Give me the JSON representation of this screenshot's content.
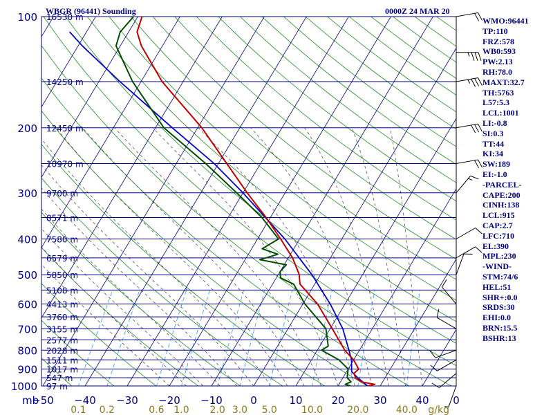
{
  "header": {
    "station": "WBGR (96441) Sounding",
    "time": "0000Z 24 MAR 20"
  },
  "chart_data": {
    "type": "skew-t",
    "pressure_ticks": [
      "100",
      "200",
      "300",
      "400",
      "500",
      "600",
      "700",
      "800",
      "900",
      "1000"
    ],
    "pressure_unit": "mb",
    "height_levels": [
      {
        "p": 100,
        "label": "16530 m"
      },
      {
        "p": 150,
        "label": "14250 m"
      },
      {
        "p": 200,
        "label": "12450 m"
      },
      {
        "p": 250,
        "label": "10970 m"
      },
      {
        "p": 300,
        "label": "9700 m"
      },
      {
        "p": 350,
        "label": "8571 m"
      },
      {
        "p": 400,
        "label": "7580 m"
      },
      {
        "p": 450,
        "label": "6579 m"
      },
      {
        "p": 500,
        "label": "5850 m"
      },
      {
        "p": 550,
        "label": "5108 m"
      },
      {
        "p": 600,
        "label": "4413 m"
      },
      {
        "p": 650,
        "label": "3760 m"
      },
      {
        "p": 700,
        "label": "3155 m"
      },
      {
        "p": 750,
        "label": "2577 m"
      },
      {
        "p": 800,
        "label": "2028 m"
      },
      {
        "p": 850,
        "label": "1511 m"
      },
      {
        "p": 900,
        "label": "1017 m"
      },
      {
        "p": 950,
        "label": "547 m"
      },
      {
        "p": 1000,
        "label": "97 m"
      }
    ],
    "temp_ticks": [
      "−50",
      "−40",
      "−30",
      "−20",
      "−10",
      "0",
      "10",
      "20",
      "30",
      "40",
      "0"
    ],
    "mixing_ticks": [
      "0.1",
      "0.2",
      "0.6",
      "1.0",
      "2.0",
      "3.0",
      "5.0",
      "10.0",
      "20.0",
      "40.0"
    ],
    "mixing_unit": "g/kg",
    "temperature": [
      {
        "p": 1000,
        "t": 27.0
      },
      {
        "p": 990,
        "t": 28.5
      },
      {
        "p": 975,
        "t": 25.0
      },
      {
        "p": 950,
        "t": 23.0
      },
      {
        "p": 925,
        "t": 22.0
      },
      {
        "p": 900,
        "t": 22.5
      },
      {
        "p": 850,
        "t": 20.0
      },
      {
        "p": 800,
        "t": 16.5
      },
      {
        "p": 700,
        "t": 10.5
      },
      {
        "p": 600,
        "t": 3.5
      },
      {
        "p": 530,
        "t": -3.5
      },
      {
        "p": 510,
        "t": -4.5
      },
      {
        "p": 500,
        "t": -5.0
      },
      {
        "p": 450,
        "t": -9.0
      },
      {
        "p": 400,
        "t": -14.5
      },
      {
        "p": 350,
        "t": -21.0
      },
      {
        "p": 300,
        "t": -29.0
      },
      {
        "p": 250,
        "t": -38.0
      },
      {
        "p": 200,
        "t": -49.0
      },
      {
        "p": 150,
        "t": -65.0
      },
      {
        "p": 120,
        "t": -75.0
      },
      {
        "p": 110,
        "t": -78.0
      },
      {
        "p": 100,
        "t": -79.0
      }
    ],
    "dewpoint": [
      {
        "p": 1000,
        "t": 23.0
      },
      {
        "p": 990,
        "t": 21.5
      },
      {
        "p": 975,
        "t": 22.5
      },
      {
        "p": 950,
        "t": 21.0
      },
      {
        "p": 925,
        "t": 20.5
      },
      {
        "p": 900,
        "t": 20.0
      },
      {
        "p": 850,
        "t": 16.5
      },
      {
        "p": 800,
        "t": 11.0
      },
      {
        "p": 780,
        "t": 12.0
      },
      {
        "p": 700,
        "t": 9.0
      },
      {
        "p": 600,
        "t": 0.5
      },
      {
        "p": 530,
        "t": -5.0
      },
      {
        "p": 510,
        "t": -9.0
      },
      {
        "p": 490,
        "t": -10.0
      },
      {
        "p": 470,
        "t": -9.5
      },
      {
        "p": 455,
        "t": -16.5
      },
      {
        "p": 440,
        "t": -13.0
      },
      {
        "p": 425,
        "t": -17.5
      },
      {
        "p": 400,
        "t": -15.0
      },
      {
        "p": 350,
        "t": -22.0
      },
      {
        "p": 300,
        "t": -31.5
      },
      {
        "p": 250,
        "t": -43.0
      },
      {
        "p": 200,
        "t": -58.0
      },
      {
        "p": 150,
        "t": -72.0
      },
      {
        "p": 120,
        "t": -81.0
      },
      {
        "p": 110,
        "t": -82.0
      },
      {
        "p": 100,
        "t": -81.0
      }
    ],
    "parcel": [
      {
        "p": 1000,
        "t": 27.0
      },
      {
        "p": 950,
        "t": 23.5
      },
      {
        "p": 915,
        "t": 21.2
      },
      {
        "p": 850,
        "t": 19.5
      },
      {
        "p": 800,
        "t": 17.5
      },
      {
        "p": 700,
        "t": 13.0
      },
      {
        "p": 600,
        "t": 6.5
      },
      {
        "p": 500,
        "t": -2.0
      },
      {
        "p": 400,
        "t": -13.5
      },
      {
        "p": 300,
        "t": -30.0
      },
      {
        "p": 250,
        "t": -41.0
      },
      {
        "p": 200,
        "t": -56.0
      },
      {
        "p": 150,
        "t": -75.0
      },
      {
        "p": 120,
        "t": -89.0
      },
      {
        "p": 110,
        "t": -94.0
      }
    ],
    "winds": [
      {
        "p": 1000,
        "dir": 200,
        "spd": 5
      },
      {
        "p": 925,
        "dir": 230,
        "spd": 10
      },
      {
        "p": 850,
        "dir": 240,
        "spd": 10
      },
      {
        "p": 800,
        "dir": 250,
        "spd": 10
      },
      {
        "p": 700,
        "dir": 300,
        "spd": 10
      },
      {
        "p": 600,
        "dir": 320,
        "spd": 10
      },
      {
        "p": 500,
        "dir": 20,
        "spd": 10
      },
      {
        "p": 450,
        "dir": 60,
        "spd": 10
      },
      {
        "p": 400,
        "dir": 60,
        "spd": 10
      },
      {
        "p": 300,
        "dir": 40,
        "spd": 15
      },
      {
        "p": 250,
        "dir": 80,
        "spd": 20
      },
      {
        "p": 200,
        "dir": 80,
        "spd": 30
      },
      {
        "p": 150,
        "dir": 80,
        "spd": 35
      },
      {
        "p": 125,
        "dir": 90,
        "spd": 35
      },
      {
        "p": 100,
        "dir": 80,
        "spd": 20
      }
    ],
    "colors": {
      "isobar": "#000080",
      "isotherm": "#000080",
      "dry_adiabat": "#228B22",
      "moist_adiabat": "#555555",
      "mixing_ratio": "#3399ff",
      "temperature": "#c00000",
      "dewpoint": "#004d00",
      "parcel": "#0000cc",
      "wind": "#000000"
    }
  },
  "indices": [
    "WMO:96441",
    "TP:110",
    "FRZ:578",
    "WB0:593",
    "PW:2.13",
    "RH:78.0",
    "MAXT:32.7",
    "TH:5763",
    "L57:5.3",
    "LCL:1001",
    "LI:-0.8",
    "SI:0.3",
    "TT:44",
    "KI:34",
    "SW:189",
    "EI:-1.0",
    "-PARCEL-",
    "CAPE:200",
    "CINH:138",
    "LCL:915",
    "CAP:2.7",
    "LFC:710",
    "EL:390",
    "MPL:230",
    "-WIND-",
    "STM:74/6",
    "HEL:51",
    "SHR+:0.0",
    "SRDS:30",
    "EHI:0.0",
    "BRN:15.5",
    "BSHR:13"
  ]
}
